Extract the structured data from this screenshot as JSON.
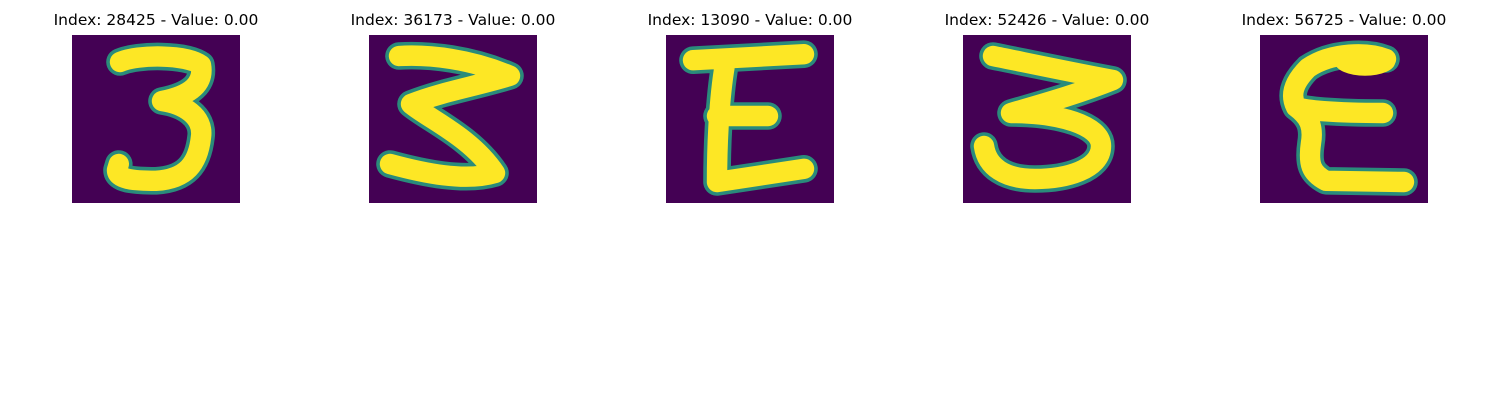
{
  "figure": {
    "colormap": {
      "background": "#440154",
      "edge": "#26a383",
      "stroke": "#fde725"
    },
    "panels": [
      {
        "title": "Index: 28425 - Value: 0.00",
        "glyph": "3"
      },
      {
        "title": "Index: 36173 - Value: 0.00",
        "glyph": "Z"
      },
      {
        "title": "Index: 13090 - Value: 0.00",
        "glyph": "E"
      },
      {
        "title": "Index: 52426 - Value: 0.00",
        "glyph": "3"
      },
      {
        "title": "Index: 56725 - Value: 0.00",
        "glyph": "E"
      }
    ]
  }
}
